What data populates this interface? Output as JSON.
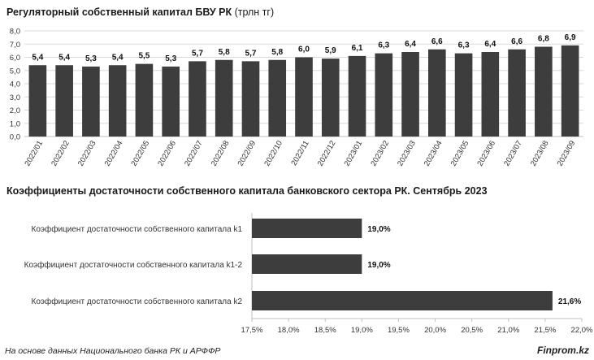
{
  "chart_data": [
    {
      "type": "bar",
      "title_bold": "Регуляторный собственный капитал БВУ РК",
      "title_rest": " (трлн тг)",
      "categories": [
        "2022/01",
        "2022/02",
        "2022/03",
        "2022/04",
        "2022/05",
        "2022/06",
        "2022/07",
        "2022/08",
        "2022/09",
        "2022/10",
        "2022/11",
        "2022/12",
        "2023/01",
        "2023/02",
        "2023/03",
        "2023/04",
        "2023/05",
        "2023/06",
        "2023/07",
        "2023/08",
        "2023/09"
      ],
      "values": [
        5.4,
        5.4,
        5.3,
        5.4,
        5.5,
        5.3,
        5.7,
        5.8,
        5.7,
        5.8,
        6.0,
        5.9,
        6.1,
        6.3,
        6.4,
        6.6,
        6.3,
        6.4,
        6.6,
        6.8,
        6.9
      ],
      "value_labels": [
        "5,4",
        "5,4",
        "5,3",
        "5,4",
        "5,5",
        "5,3",
        "5,7",
        "5,8",
        "5,7",
        "5,8",
        "6,0",
        "5,9",
        "6,1",
        "6,3",
        "6,4",
        "6,6",
        "6,3",
        "6,4",
        "6,6",
        "6,8",
        "6,9"
      ],
      "ylim": [
        0,
        8
      ],
      "yticks": [
        "0,0",
        "1,0",
        "2,0",
        "3,0",
        "4,0",
        "5,0",
        "6,0",
        "7,0",
        "8,0"
      ],
      "grid": true,
      "bar_color": "#3d3d3d"
    },
    {
      "type": "bar",
      "orientation": "horizontal",
      "title": "Коэффициенты достаточности собственного капитала банковского сектора РК. Сентябрь 2023",
      "categories": [
        "Коэффициент достаточности собственного капитала k1",
        "Коэффициент достаточности собственного капитала k1-2",
        "Коэффициент достаточности собственного капитала k2"
      ],
      "values": [
        19.0,
        19.0,
        21.6
      ],
      "value_labels": [
        "19,0%",
        "19,0%",
        "21,6%"
      ],
      "xlim": [
        17.5,
        22.0
      ],
      "xticks": [
        "17,5%",
        "18,0%",
        "18,5%",
        "19,0%",
        "19,5%",
        "20,0%",
        "20,5%",
        "21,0%",
        "21,5%",
        "22,0%"
      ],
      "grid": false,
      "bar_color": "#3d3d3d"
    }
  ],
  "footer": {
    "source": "На основе данных Национального банка РК и АРФФР",
    "brand": "Finprom.kz"
  }
}
